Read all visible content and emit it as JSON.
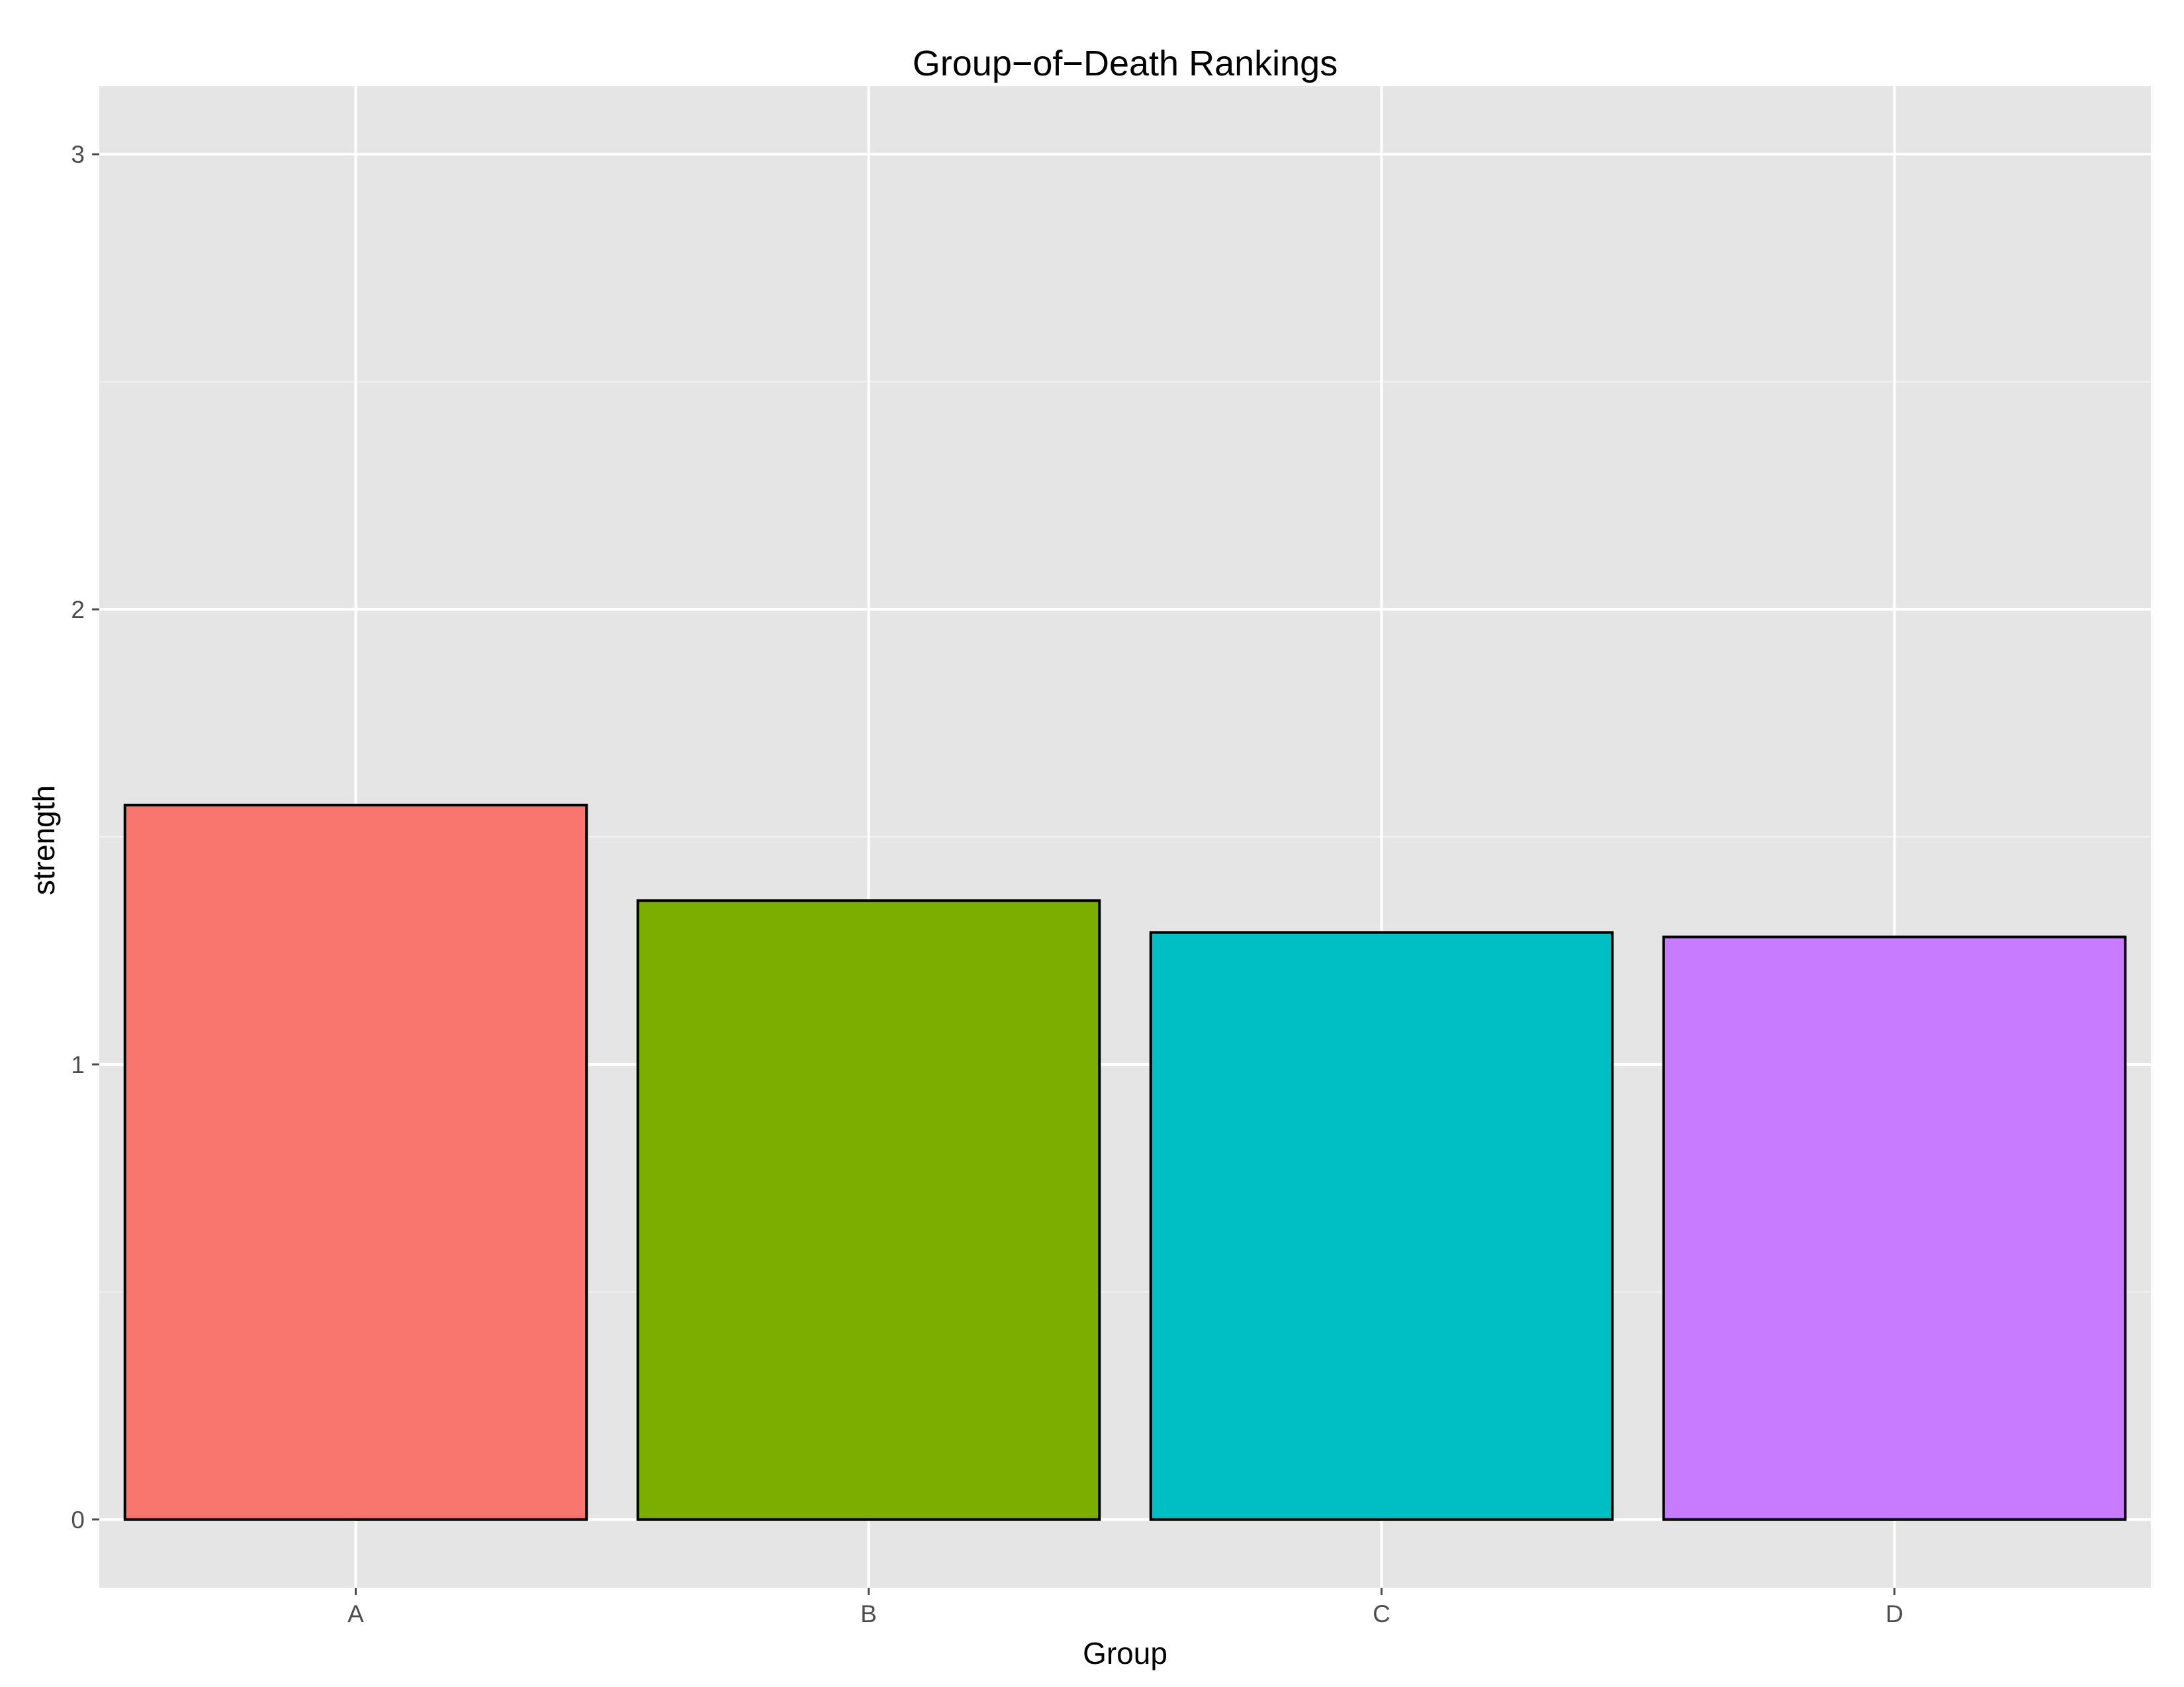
{
  "chart_data": {
    "type": "bar",
    "title": "Group−of−Death Rankings",
    "xlabel": "Group",
    "ylabel": "strength",
    "categories": [
      "A",
      "B",
      "C",
      "D"
    ],
    "values": [
      1.57,
      1.36,
      1.29,
      1.28
    ],
    "colors": [
      "#F8766D",
      "#7CAE00",
      "#00BFC4",
      "#C77CFF"
    ],
    "ylim": [
      -0.15,
      3.15
    ],
    "yticks": [
      0,
      1,
      2,
      3
    ],
    "ytick_labels": [
      "0",
      "1",
      "2",
      "3"
    ],
    "grid": true,
    "legend": "none"
  }
}
